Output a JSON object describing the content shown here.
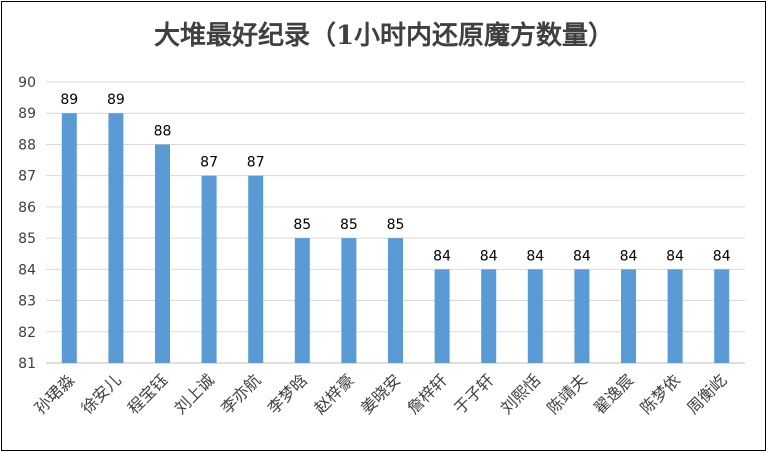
{
  "chart_data": {
    "type": "bar",
    "title": "大堆最好纪录（1小时内还原魔方数量）",
    "xlabel": "",
    "ylabel": "",
    "ylim": [
      81,
      90
    ],
    "yticks": [
      81,
      82,
      83,
      84,
      85,
      86,
      87,
      88,
      89,
      90
    ],
    "grid": true,
    "legend": "none",
    "bar_color": "#5b9bd5",
    "categories": [
      "孙珺淼",
      "徐安儿",
      "程宝钰",
      "刘上诚",
      "李亦航",
      "李梦晗",
      "赵梓豪",
      "姜晓安",
      "詹梓轩",
      "于子轩",
      "刘熙恬",
      "陈靖夫",
      "翟逸宸",
      "陈梦依",
      "周衡屹"
    ],
    "values": [
      89,
      89,
      88,
      87,
      87,
      85,
      85,
      85,
      84,
      84,
      84,
      84,
      84,
      84,
      84
    ]
  }
}
